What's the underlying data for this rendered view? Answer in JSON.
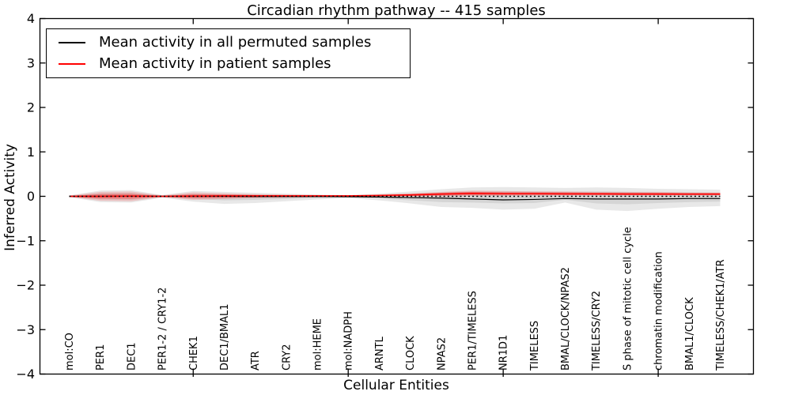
{
  "chart_data": {
    "type": "line",
    "title": "Circadian rhythm pathway -- 415 samples",
    "xlabel": "Cellular Entities",
    "ylabel": "Inferred Activity",
    "ylim": [
      -4,
      4
    ],
    "grid": false,
    "legend_position": "upper left",
    "yticks": [
      {
        "value": 4,
        "label": "4"
      },
      {
        "value": 3,
        "label": "3"
      },
      {
        "value": 2,
        "label": "2"
      },
      {
        "value": 1,
        "label": "1"
      },
      {
        "value": 0,
        "label": "0"
      },
      {
        "value": -1,
        "label": "−1"
      },
      {
        "value": -2,
        "label": "−2"
      },
      {
        "value": -3,
        "label": "−3"
      },
      {
        "value": -4,
        "label": "−4"
      }
    ],
    "xtick_category_indices": [
      4,
      9,
      14,
      19
    ],
    "categories": [
      "mol:CO",
      "PER1",
      "DEC1",
      "PER1-2 / CRY1-2",
      "CHEK1",
      "DEC1/BMAL1",
      "ATR",
      "CRY2",
      "mol:HEME",
      "mol:NADPH",
      "ARNTL",
      "CLOCK",
      "NPAS2",
      "PER1/TIMELESS",
      "NR1D1",
      "TIMELESS",
      "BMAL/CLOCK/NPAS2",
      "TIMELESS/CRY2",
      "S phase of mitotic cell cycle",
      "chromatin modification",
      "BMAL1/CLOCK",
      "TIMELESS/CHEK1/ATR"
    ],
    "series": [
      {
        "id": "permuted-mean",
        "name": "Mean activity in all permuted samples",
        "color": "#000000",
        "style": "solid",
        "width": 1.2,
        "values": [
          0,
          0,
          0.005,
          0,
          0,
          0,
          -0.005,
          -0.005,
          -0.005,
          -0.01,
          -0.015,
          -0.03,
          -0.04,
          -0.06,
          -0.08,
          -0.07,
          -0.05,
          -0.06,
          -0.06,
          -0.06,
          -0.05,
          -0.05
        ]
      },
      {
        "id": "patient-mean",
        "name": "Mean activity in patient samples",
        "color": "#ff0000",
        "style": "solid",
        "width": 1.6,
        "values": [
          0,
          0,
          0.005,
          0,
          0.005,
          0.01,
          0.01,
          0.01,
          0.01,
          0.01,
          0.02,
          0.03,
          0.05,
          0.065,
          0.06,
          0.06,
          0.055,
          0.055,
          0.05,
          0.05,
          0.05,
          0.05
        ]
      },
      {
        "id": "zero-reference-line",
        "name": "zero reference",
        "color": "#000000",
        "style": "dotted",
        "width": 1.6,
        "values": [
          0,
          0,
          0,
          0,
          0,
          0,
          0,
          0,
          0,
          0,
          0,
          0,
          0,
          0,
          0,
          0,
          0,
          0,
          0,
          0,
          0,
          0
        ]
      }
    ],
    "bands": [
      {
        "id": "permuted-range-outer",
        "color": "rgba(0,0,0,0.09)",
        "upper": [
          0.02,
          0.13,
          0.14,
          0.03,
          0.12,
          0.1,
          0.08,
          0.06,
          0.04,
          0.03,
          0.06,
          0.11,
          0.16,
          0.2,
          0.21,
          0.2,
          0.19,
          0.2,
          0.19,
          0.17,
          0.16,
          0.15
        ],
        "lower": [
          -0.02,
          -0.13,
          -0.14,
          -0.03,
          -0.12,
          -0.17,
          -0.15,
          -0.11,
          -0.07,
          -0.04,
          -0.09,
          -0.16,
          -0.24,
          -0.26,
          -0.3,
          -0.28,
          -0.14,
          -0.3,
          -0.33,
          -0.28,
          -0.24,
          -0.22
        ]
      },
      {
        "id": "permuted-range-inner",
        "color": "rgba(0,0,0,0.08)",
        "upper": [
          0.01,
          0.07,
          0.08,
          0.015,
          0.06,
          0.05,
          0.04,
          0.03,
          0.02,
          0.015,
          0.03,
          0.06,
          0.09,
          0.11,
          0.11,
          0.11,
          0.1,
          0.11,
          0.1,
          0.09,
          0.09,
          0.08
        ],
        "lower": [
          -0.01,
          -0.07,
          -0.08,
          -0.015,
          -0.06,
          -0.09,
          -0.08,
          -0.06,
          -0.035,
          -0.02,
          -0.05,
          -0.09,
          -0.13,
          -0.14,
          -0.16,
          -0.15,
          -0.08,
          -0.16,
          -0.18,
          -0.15,
          -0.13,
          -0.12
        ]
      },
      {
        "id": "patient-range-outer",
        "color": "rgba(255,0,0,0.16)",
        "upper": [
          0.015,
          0.1,
          0.11,
          0.02,
          0.09,
          0.07,
          0.05,
          0.04,
          0.03,
          0.02,
          0.04,
          0.07,
          0.1,
          0.13,
          0.12,
          0.11,
          0.11,
          0.1,
          0.1,
          0.1,
          0.09,
          0.09
        ],
        "lower": [
          -0.015,
          -0.1,
          -0.11,
          -0.02,
          -0.08,
          -0.06,
          -0.04,
          -0.03,
          -0.02,
          -0.01,
          -0.01,
          0,
          0,
          0.01,
          0.01,
          0.015,
          0.02,
          0.02,
          0.02,
          0.02,
          0.02,
          0.02
        ]
      },
      {
        "id": "patient-range-inner",
        "color": "rgba(255,0,0,0.30)",
        "upper": [
          0.008,
          0.05,
          0.055,
          0.01,
          0.045,
          0.04,
          0.03,
          0.02,
          0.015,
          0.01,
          0.03,
          0.05,
          0.08,
          0.1,
          0.09,
          0.09,
          0.09,
          0.08,
          0.08,
          0.08,
          0.07,
          0.07
        ],
        "lower": [
          -0.008,
          -0.05,
          -0.055,
          -0.01,
          -0.04,
          -0.03,
          -0.02,
          -0.01,
          0,
          0,
          0.005,
          0.01,
          0.02,
          0.03,
          0.03,
          0.03,
          0.03,
          0.03,
          0.03,
          0.03,
          0.03,
          0.03
        ]
      }
    ],
    "colors": {
      "axis": "#000000",
      "background": "#ffffff",
      "permuted_line": "#000000",
      "patient_line": "#ff0000"
    }
  }
}
